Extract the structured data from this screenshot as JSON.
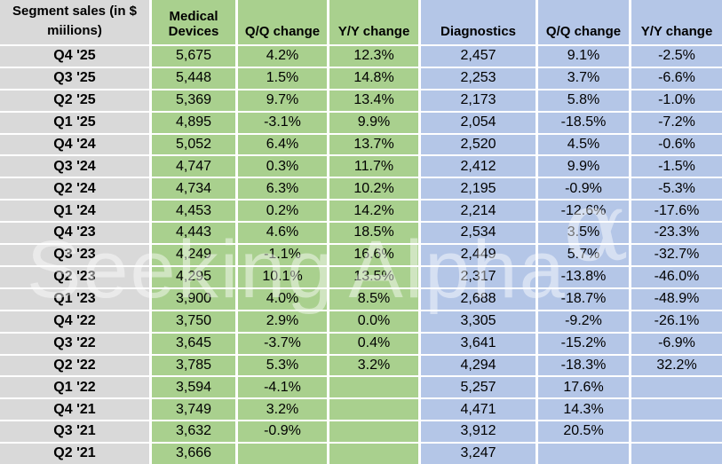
{
  "chart_data": {
    "type": "table",
    "columns": [
      "Segment sales (in $ miilions)",
      "Medical Devices",
      "Q/Q change",
      "Y/Y change",
      "Diagnostics",
      "Q/Q change",
      "Y/Y change"
    ],
    "rows": [
      [
        "Q4 '25",
        "5,675",
        "4.2%",
        "12.3%",
        "2,457",
        "9.1%",
        "-2.5%"
      ],
      [
        "Q3 '25",
        "5,448",
        "1.5%",
        "14.8%",
        "2,253",
        "3.7%",
        "-6.6%"
      ],
      [
        "Q2 '25",
        "5,369",
        "9.7%",
        "13.4%",
        "2,173",
        "5.8%",
        "-1.0%"
      ],
      [
        "Q1 '25",
        "4,895",
        "-3.1%",
        "9.9%",
        "2,054",
        "-18.5%",
        "-7.2%"
      ],
      [
        "Q4 '24",
        "5,052",
        "6.4%",
        "13.7%",
        "2,520",
        "4.5%",
        "-0.6%"
      ],
      [
        "Q3 '24",
        "4,747",
        "0.3%",
        "11.7%",
        "2,412",
        "9.9%",
        "-1.5%"
      ],
      [
        "Q2 '24",
        "4,734",
        "6.3%",
        "10.2%",
        "2,195",
        "-0.9%",
        "-5.3%"
      ],
      [
        "Q1 '24",
        "4,453",
        "0.2%",
        "14.2%",
        "2,214",
        "-12.6%",
        "-17.6%"
      ],
      [
        "Q4 '23",
        "4,443",
        "4.6%",
        "18.5%",
        "2,534",
        "3.5%",
        "-23.3%"
      ],
      [
        "Q3 '23",
        "4,249",
        "-1.1%",
        "16.6%",
        "2,449",
        "5.7%",
        "-32.7%"
      ],
      [
        "Q2 '23",
        "4,295",
        "10.1%",
        "13.5%",
        "2,317",
        "-13.8%",
        "-46.0%"
      ],
      [
        "Q1 '23",
        "3,900",
        "4.0%",
        "8.5%",
        "2,688",
        "-18.7%",
        "-48.9%"
      ],
      [
        "Q4 '22",
        "3,750",
        "2.9%",
        "0.0%",
        "3,305",
        "-9.2%",
        "-26.1%"
      ],
      [
        "Q3 '22",
        "3,645",
        "-3.7%",
        "0.4%",
        "3,641",
        "-15.2%",
        "-6.9%"
      ],
      [
        "Q2 '22",
        "3,785",
        "5.3%",
        "3.2%",
        "4,294",
        "-18.3%",
        "32.2%"
      ],
      [
        "Q1 '22",
        "3,594",
        "-4.1%",
        "",
        "5,257",
        "17.6%",
        ""
      ],
      [
        "Q4 '21",
        "3,749",
        "3.2%",
        "",
        "4,471",
        "14.3%",
        ""
      ],
      [
        "Q3 '21",
        "3,632",
        "-0.9%",
        "",
        "3,912",
        "20.5%",
        ""
      ],
      [
        "Q2 '21",
        "3,666",
        "",
        "",
        "3,247",
        "",
        ""
      ]
    ],
    "layout": {
      "column_groups": [
        "labels",
        "medical-devices",
        "medical-devices",
        "medical-devices",
        "diagnostics",
        "diagnostics",
        "diagnostics"
      ]
    }
  },
  "watermark": {
    "part1": "Seeking",
    "part2": "Alpha",
    "symbol": "α"
  },
  "colors": {
    "label_bg": "#d9d9d9",
    "medical_devices_bg": "#a9d08e",
    "diagnostics_bg": "#b4c6e7",
    "gridline": "#ffffff",
    "text": "#000000"
  }
}
